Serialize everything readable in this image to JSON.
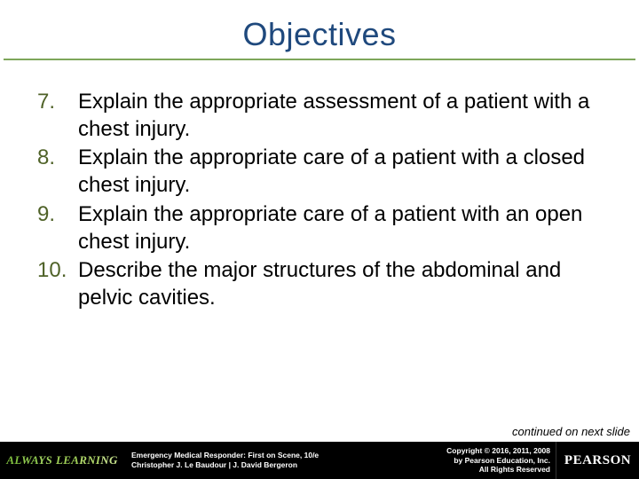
{
  "slide": {
    "title": "Objectives",
    "title_color": "#1f497d",
    "underline_color": "#7da65a",
    "background_color": "#ffffff",
    "body_fontsize": 24,
    "objectives_start": 7,
    "objectives": [
      {
        "n": "7.",
        "text": "Explain the appropriate assessment of a patient with a chest injury."
      },
      {
        "n": "8.",
        "text": "Explain the appropriate care of a patient with a closed chest injury."
      },
      {
        "n": "9.",
        "text": "Explain the appropriate care of a patient with an open chest injury."
      },
      {
        "n": "10.",
        "text": "Describe the major structures of the abdominal and pelvic cavities."
      }
    ],
    "number_color": "#4f6228",
    "continued_text": "continued on next slide"
  },
  "footer": {
    "always_learning": "ALWAYS LEARNING",
    "book_title_line1": "Emergency Medical Responder: First on Scene, 10/e",
    "book_title_line2": "Christopher J. Le Baudour | J. David Bergeron",
    "copyright_line1": "Copyright © 2016, 2011, 2008",
    "copyright_line2": "by Pearson Education, Inc.",
    "copyright_line3": "All Rights Reserved",
    "pearson": "PEARSON",
    "bg_color": "#000000"
  }
}
